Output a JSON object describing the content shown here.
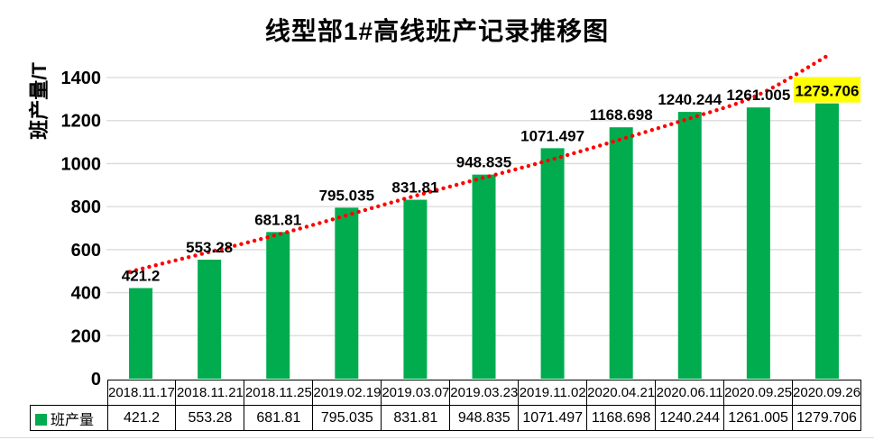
{
  "chart_data": {
    "type": "bar",
    "title": "线型部1#高线班产记录推移图",
    "ylabel": "班产量/T",
    "xlabel": "",
    "series_name": "班产量",
    "categories": [
      "2018.11.17",
      "2018.11.21",
      "2018.11.25",
      "2019.02.19",
      "2019.03.07",
      "2019.03.23",
      "2019.11.02",
      "2020.04.21",
      "2020.06.11",
      "2020.09.25",
      "2020.09.26"
    ],
    "values": [
      421.2,
      553.28,
      681.81,
      795.035,
      831.81,
      948.835,
      1071.497,
      1168.698,
      1240.244,
      1261.005,
      1279.706
    ],
    "ylim": [
      0,
      1400
    ],
    "yticks": [
      0,
      200,
      400,
      600,
      800,
      1000,
      1200,
      1400
    ],
    "grid": "horizontal",
    "legend_position": "bottom-table",
    "bar_color": "#00AC4E",
    "gridline_color": "#D9D9D9",
    "label_color": "#000000",
    "highlight_last_label": {
      "index": 10,
      "text_color": "#FF0000",
      "bg_color": "#FFFF00"
    },
    "trendline": {
      "style": "dotted",
      "color": "#FF0000",
      "points": [
        [
          -0.15,
          495
        ],
        [
          0,
          510
        ],
        [
          2,
          670
        ],
        [
          4,
          850
        ],
        [
          6,
          1020
        ],
        [
          8,
          1210
        ],
        [
          9,
          1320
        ],
        [
          10,
          1500
        ]
      ]
    }
  }
}
